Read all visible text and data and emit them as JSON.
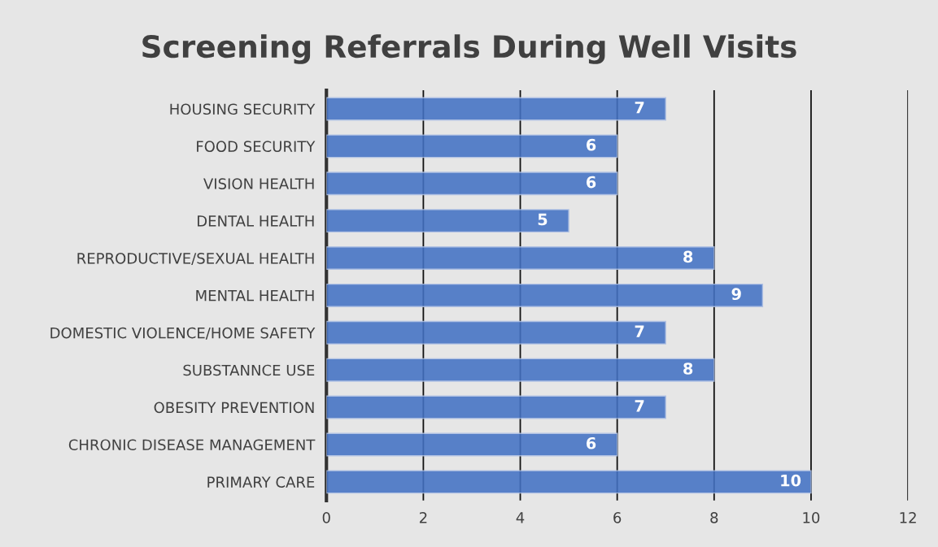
{
  "chart_data": {
    "type": "bar",
    "orientation": "horizontal",
    "title": "Screening Referrals During Well Visits",
    "categories": [
      "HOUSING SECURITY",
      "FOOD SECURITY",
      "VISION HEALTH",
      "DENTAL HEALTH",
      "REPRODUCTIVE/SEXUAL HEALTH",
      "MENTAL HEALTH",
      "DOMESTIC VIOLENCE/HOME SAFETY",
      "SUBSTANNCE USE",
      "OBESITY PREVENTION",
      "CHRONIC DISEASE MANAGEMENT",
      "PRIMARY CARE"
    ],
    "values": [
      7,
      6,
      6,
      5,
      8,
      9,
      7,
      8,
      7,
      6,
      10
    ],
    "color": "#4472c4",
    "xlim": [
      0,
      12
    ],
    "xticks": [
      0,
      2,
      4,
      6,
      8,
      10,
      12
    ],
    "grid": "x",
    "data_labels": true
  }
}
